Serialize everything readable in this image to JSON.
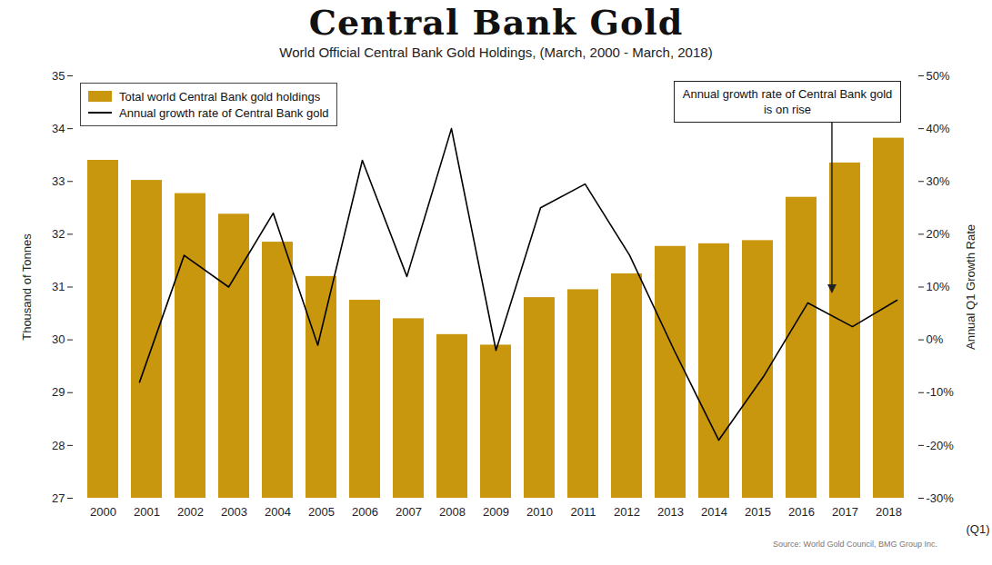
{
  "chart_data": {
    "type": "bar",
    "title": "Central Bank Gold",
    "subtitle": "World Official Central Bank Gold Holdings, (March, 2000 - March, 2018)",
    "caption": "Source: World Gold Council, BMG Group Inc.",
    "x_label": "(Q1)",
    "y_label": "Thousand of Tonnes",
    "y2_label": "Annual Q1 Growth Rate",
    "categories": [
      "2000",
      "2001",
      "2002",
      "2003",
      "2004",
      "2005",
      "2006",
      "2007",
      "2008",
      "2009",
      "2010",
      "2011",
      "2012",
      "2013",
      "2014",
      "2015",
      "2016",
      "2017",
      "2018"
    ],
    "series": [
      {
        "name": "Total world Central Bank gold holdings",
        "type": "bar",
        "color": "#c9970e",
        "values": [
          33.4,
          33.02,
          32.77,
          32.38,
          31.85,
          31.2,
          30.75,
          30.4,
          30.1,
          29.9,
          30.8,
          30.95,
          31.25,
          31.77,
          31.82,
          31.88,
          32.7,
          33.35,
          33.82
        ]
      },
      {
        "name": "Annual growth rate of Central Bank gold",
        "type": "line",
        "color": "#000000",
        "axis": "y2",
        "values": [
          null,
          -8,
          16,
          10,
          24,
          -1,
          34,
          12,
          40,
          -2,
          25,
          29.5,
          16,
          -2,
          -19,
          -7,
          7,
          2.5,
          7.5
        ]
      }
    ],
    "ylim": [
      27,
      35
    ],
    "yticks": [
      27,
      28,
      29,
      30,
      31,
      32,
      33,
      34,
      35
    ],
    "y2lim": [
      -30,
      50
    ],
    "y2ticks": [
      {
        "value": -30,
        "label": "-30%"
      },
      {
        "value": -20,
        "label": "-20%"
      },
      {
        "value": -10,
        "label": "-10%"
      },
      {
        "value": 0,
        "label": "0%"
      },
      {
        "value": 10,
        "label": "10%"
      },
      {
        "value": 20,
        "label": "20%"
      },
      {
        "value": 30,
        "label": "30%"
      },
      {
        "value": 40,
        "label": "40%"
      },
      {
        "value": 50,
        "label": "50%"
      }
    ],
    "annotations": [
      {
        "text": "Annual growth rate of Central Bank gold is on rise"
      }
    ],
    "legend": "top-left",
    "grid": false
  }
}
